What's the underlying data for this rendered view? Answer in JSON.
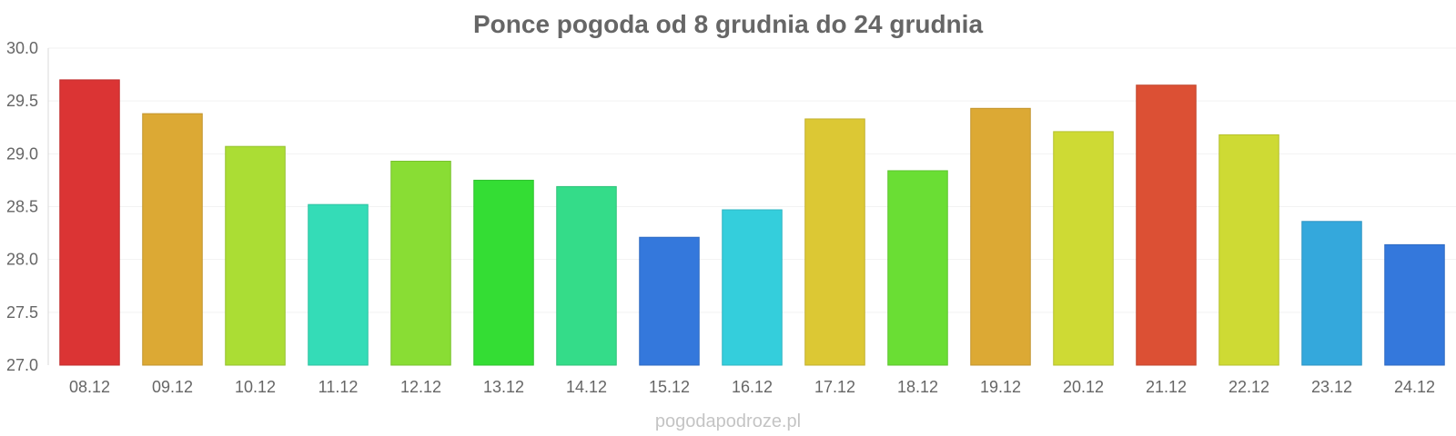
{
  "chart_data": {
    "type": "bar",
    "title": "Ponce pogoda od 8 grudnia do 24 grudnia",
    "xlabel": "",
    "ylabel": "",
    "ylim": [
      27.0,
      30.0
    ],
    "yticks": [
      "27.0",
      "27.5",
      "28.0",
      "28.5",
      "29.0",
      "29.5",
      "30.0"
    ],
    "grid": true,
    "legend": "none",
    "categories": [
      "08.12",
      "09.12",
      "10.12",
      "11.12",
      "12.12",
      "13.12",
      "14.12",
      "15.12",
      "16.12",
      "17.12",
      "18.12",
      "19.12",
      "20.12",
      "21.12",
      "22.12",
      "23.12",
      "24.12"
    ],
    "values": [
      29.7,
      29.38,
      29.07,
      28.52,
      28.93,
      28.75,
      28.69,
      28.21,
      28.47,
      29.33,
      28.84,
      29.43,
      29.21,
      29.65,
      29.18,
      28.36,
      28.14
    ],
    "colors": [
      "#db3434",
      "#dca934",
      "#abdd34",
      "#34dcb7",
      "#89dd34",
      "#34dd34",
      "#34dc89",
      "#3478dc",
      "#34cedc",
      "#dcc834",
      "#6ade34",
      "#dca934",
      "#ceda34",
      "#dc5034",
      "#ceda34",
      "#34a8dc",
      "#3478dc"
    ]
  },
  "watermark": "pogodapodroze.pl"
}
